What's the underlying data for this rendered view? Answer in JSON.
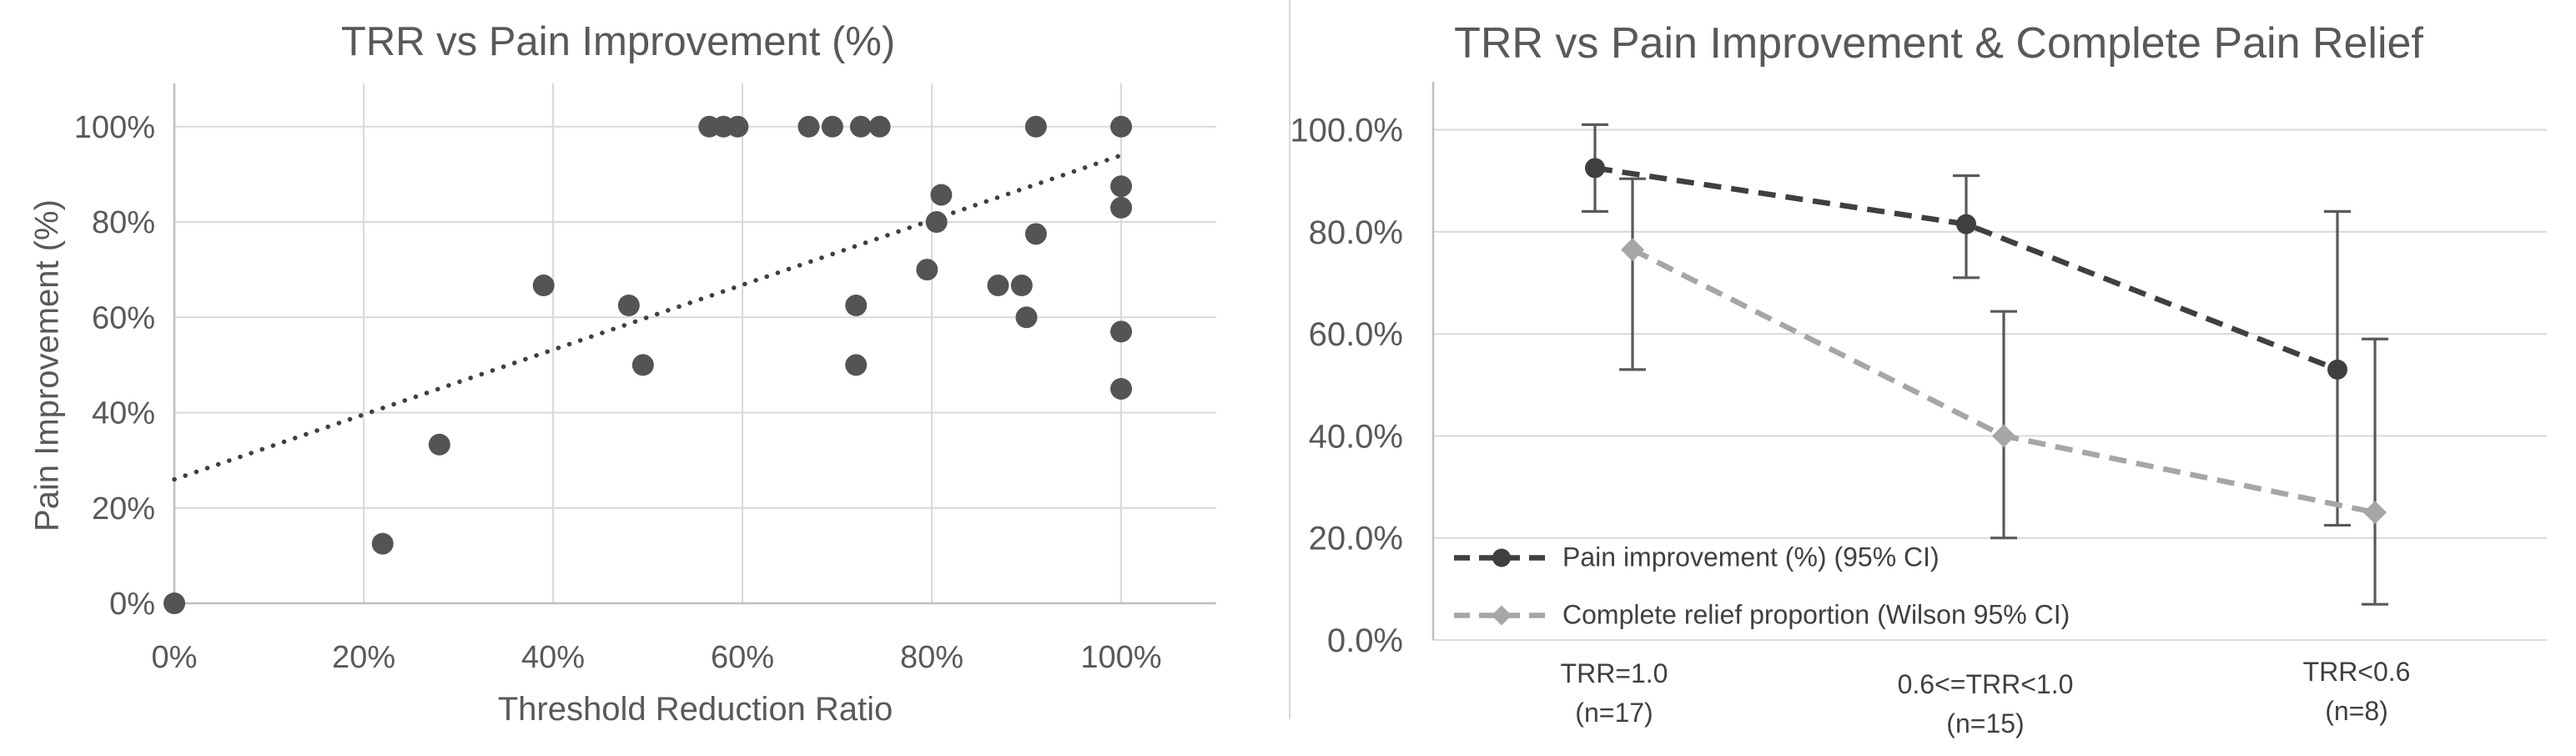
{
  "page": {
    "background": "#ffffff",
    "text_color": "#595959",
    "grid_color": "#d9d9d9",
    "axis_color": "#bfbfbf"
  },
  "chart_data": [
    {
      "type": "scatter",
      "title": "TRR vs Pain Improvement (%)",
      "xlabel": "Threshold Reduction Ratio",
      "ylabel": "Pain Improvement (%)",
      "xlim": [
        0,
        100
      ],
      "ylim": [
        0,
        100
      ],
      "grid": true,
      "x_ticks": [
        "0%",
        "20%",
        "40%",
        "60%",
        "80%",
        "100%"
      ],
      "x_tick_values": [
        0,
        20,
        40,
        60,
        80,
        100
      ],
      "y_ticks": [
        "0%",
        "20%",
        "40%",
        "60%",
        "80%",
        "100%"
      ],
      "y_tick_values": [
        0,
        20,
        40,
        60,
        80,
        100
      ],
      "marker_color": "#545454",
      "points": [
        [
          0,
          0
        ],
        [
          22,
          12.5
        ],
        [
          28,
          33.3
        ],
        [
          39,
          66.7
        ],
        [
          48,
          62.5
        ],
        [
          49.5,
          50
        ],
        [
          56.5,
          100
        ],
        [
          58,
          100
        ],
        [
          59.5,
          100
        ],
        [
          67,
          100
        ],
        [
          69.5,
          100
        ],
        [
          72.5,
          100
        ],
        [
          74.5,
          100
        ],
        [
          91,
          100
        ],
        [
          100,
          100
        ],
        [
          72,
          62.5
        ],
        [
          72,
          50
        ],
        [
          79.5,
          70
        ],
        [
          80.5,
          80
        ],
        [
          81,
          85.7
        ],
        [
          87,
          66.7
        ],
        [
          89.5,
          66.7
        ],
        [
          90,
          60
        ],
        [
          91,
          77.5
        ],
        [
          100,
          45
        ],
        [
          100,
          57
        ],
        [
          100,
          83
        ],
        [
          100,
          87.5
        ]
      ],
      "trendline": {
        "style": "dotted",
        "color": "#3f3f3f",
        "x1": 0,
        "y1": 26,
        "x2": 100,
        "y2": 94
      }
    },
    {
      "type": "line",
      "title": "TRR vs Pain Improvement & Complete Pain Relief",
      "ylim": [
        0,
        100
      ],
      "grid": true,
      "legend_position": "bottom-left-inside",
      "y_ticks": [
        "0.0%",
        "20.0%",
        "40.0%",
        "60.0%",
        "80.0%",
        "100.0%"
      ],
      "y_tick_values": [
        0,
        20,
        40,
        60,
        80,
        100
      ],
      "categories": [
        {
          "label": "TRR=1.0",
          "n": "(n=17)"
        },
        {
          "label": "0.6<=TRR<1.0",
          "n": "(n=15)"
        },
        {
          "label": "TRR<0.6",
          "n": "(n=8)"
        }
      ],
      "error_bar_color": "#595959",
      "series": [
        {
          "name": "Pain improvement (%) (95% CI)",
          "color": "#3f3f3f",
          "marker": "circle",
          "line_style": "dashed",
          "values": [
            92.5,
            81.5,
            53
          ],
          "ci_low": [
            84,
            71,
            22.5
          ],
          "ci_high": [
            101,
            91,
            84
          ]
        },
        {
          "name": "Complete relief proportion (Wilson 95% CI)",
          "color": "#a6a6a6",
          "marker": "diamond",
          "line_style": "dashed",
          "values": [
            76.5,
            40,
            25
          ],
          "ci_low": [
            53,
            20,
            7
          ],
          "ci_high": [
            90.4,
            64.4,
            59
          ]
        }
      ]
    }
  ]
}
